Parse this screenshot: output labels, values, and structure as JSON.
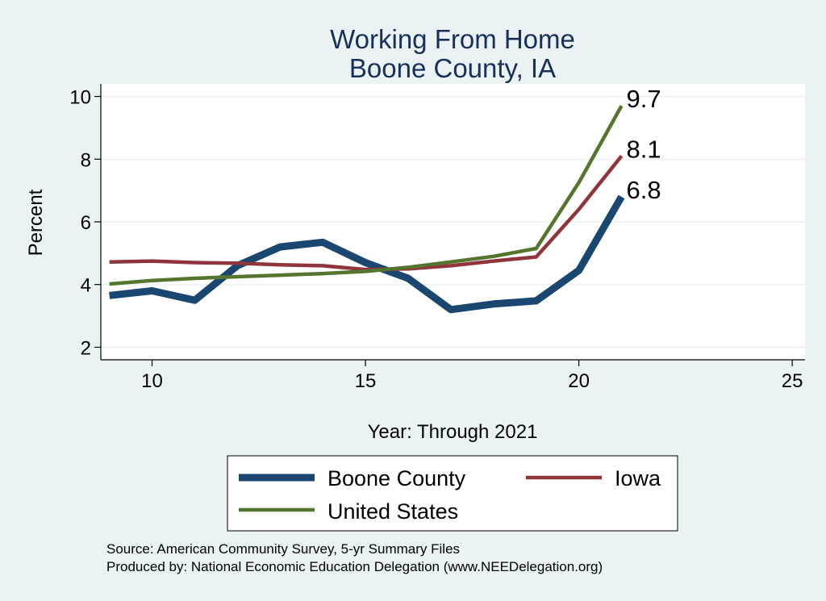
{
  "chart_data": {
    "type": "line",
    "title": [
      "Working From Home",
      "Boone County, IA"
    ],
    "xlabel": "Year: Through 2021",
    "ylabel": "Percent",
    "xlim": [
      8.8,
      25.3
    ],
    "ylim": [
      1.6,
      10.4
    ],
    "xticks": [
      10,
      15,
      20,
      25
    ],
    "yticks": [
      2,
      4,
      6,
      8,
      10
    ],
    "grid": true,
    "x": [
      9,
      10,
      11,
      12,
      13,
      14,
      15,
      16,
      17,
      18,
      19,
      20,
      21
    ],
    "series": [
      {
        "name": "Boone County",
        "color": "#1a476f",
        "values": [
          3.65,
          3.8,
          3.5,
          4.6,
          5.2,
          5.35,
          4.7,
          4.2,
          3.2,
          3.38,
          3.48,
          4.45,
          6.8
        ],
        "end_label": "6.8"
      },
      {
        "name": "Iowa",
        "color": "#90353b",
        "values": [
          4.72,
          4.75,
          4.7,
          4.68,
          4.63,
          4.6,
          4.48,
          4.5,
          4.6,
          4.75,
          4.88,
          6.4,
          8.1
        ],
        "end_label": "8.1"
      },
      {
        "name": "United States",
        "color": "#55752f",
        "values": [
          4.02,
          4.13,
          4.2,
          4.25,
          4.3,
          4.35,
          4.42,
          4.55,
          4.72,
          4.9,
          5.15,
          7.25,
          9.7
        ],
        "end_label": "9.7"
      }
    ],
    "legend": {
      "placement": "bottom",
      "entries": [
        "Boone County",
        "Iowa",
        "United States"
      ]
    },
    "notes": [
      "Source: American Community Survey, 5-yr Summary Files",
      "Produced by: National Economic Education Delegation (www.NEEDelegation.org)"
    ]
  }
}
